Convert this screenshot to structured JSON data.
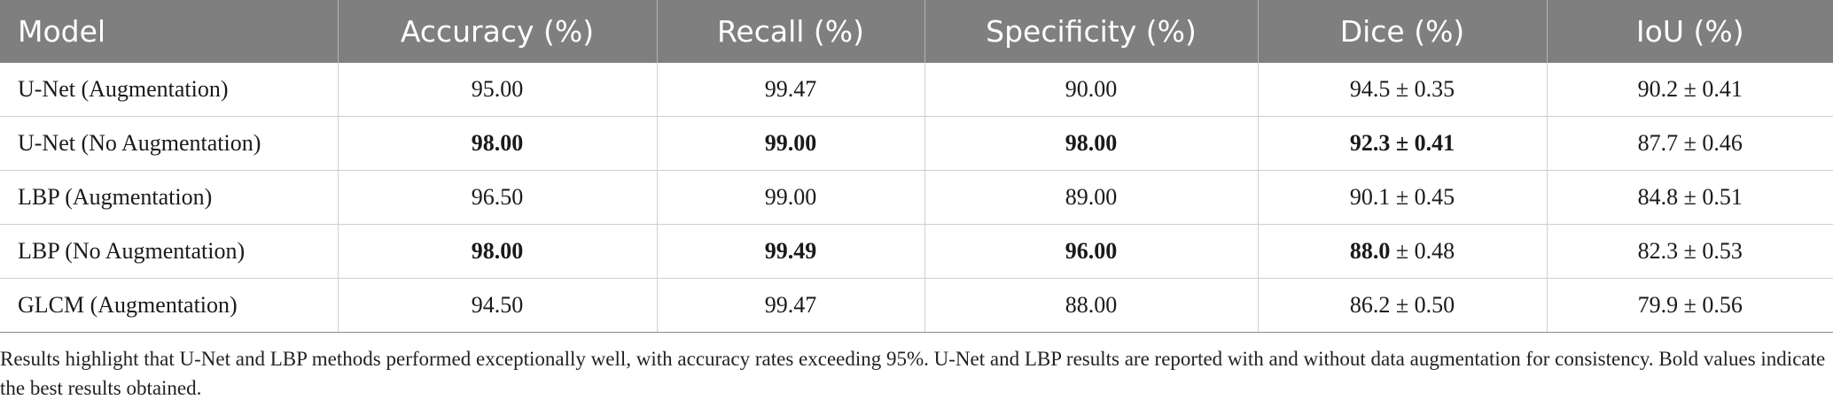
{
  "table": {
    "headers": [
      "Model",
      "Accuracy (%)",
      "Recall (%)",
      "Specificity (%)",
      "Dice (%)",
      "IoU (%)"
    ],
    "rows": [
      {
        "model": "U-Net (Augmentation)",
        "accuracy": "95.00",
        "recall": "99.47",
        "specificity": "90.00",
        "dice_value": "94.5",
        "dice_sd": " ± 0.35",
        "iou": "90.2 ± 0.41",
        "bold": {
          "accuracy": false,
          "recall": false,
          "specificity": false,
          "dice": false
        }
      },
      {
        "model": "U-Net (No Augmentation)",
        "accuracy": "98.00",
        "recall": "99.00",
        "specificity": "98.00",
        "dice_value": "92.3",
        "dice_sd": " ± 0.41",
        "iou": "87.7 ± 0.46",
        "bold": {
          "accuracy": true,
          "recall": true,
          "specificity": true,
          "dice": true,
          "dice_sd": true
        }
      },
      {
        "model": "LBP (Augmentation)",
        "accuracy": "96.50",
        "recall": "99.00",
        "specificity": "89.00",
        "dice_value": "90.1",
        "dice_sd": " ± 0.45",
        "iou": "84.8 ± 0.51",
        "bold": {
          "accuracy": false,
          "recall": false,
          "specificity": false,
          "dice": false
        }
      },
      {
        "model": "LBP (No Augmentation)",
        "accuracy": "98.00",
        "recall": "99.49",
        "specificity": "96.00",
        "dice_value": "88.0",
        "dice_sd": " ± 0.48",
        "iou": "82.3 ± 0.53",
        "bold": {
          "accuracy": true,
          "recall": true,
          "specificity": true,
          "dice": true,
          "dice_sd": false
        }
      },
      {
        "model": "GLCM (Augmentation)",
        "accuracy": "94.50",
        "recall": "99.47",
        "specificity": "88.00",
        "dice_value": "86.2",
        "dice_sd": " ± 0.50",
        "iou": "79.9 ± 0.56",
        "bold": {
          "accuracy": false,
          "recall": false,
          "specificity": false,
          "dice": false
        }
      }
    ]
  },
  "caption": "Results highlight that U-Net and LBP methods performed exceptionally well, with accuracy rates exceeding 95%. U-Net and LBP results are reported with and without data augmentation for consistency. Bold values indicate the best results obtained.",
  "colors": {
    "header_bg": "#7f7f7f",
    "header_text": "#ffffff",
    "grid": "#cfcfcf"
  }
}
